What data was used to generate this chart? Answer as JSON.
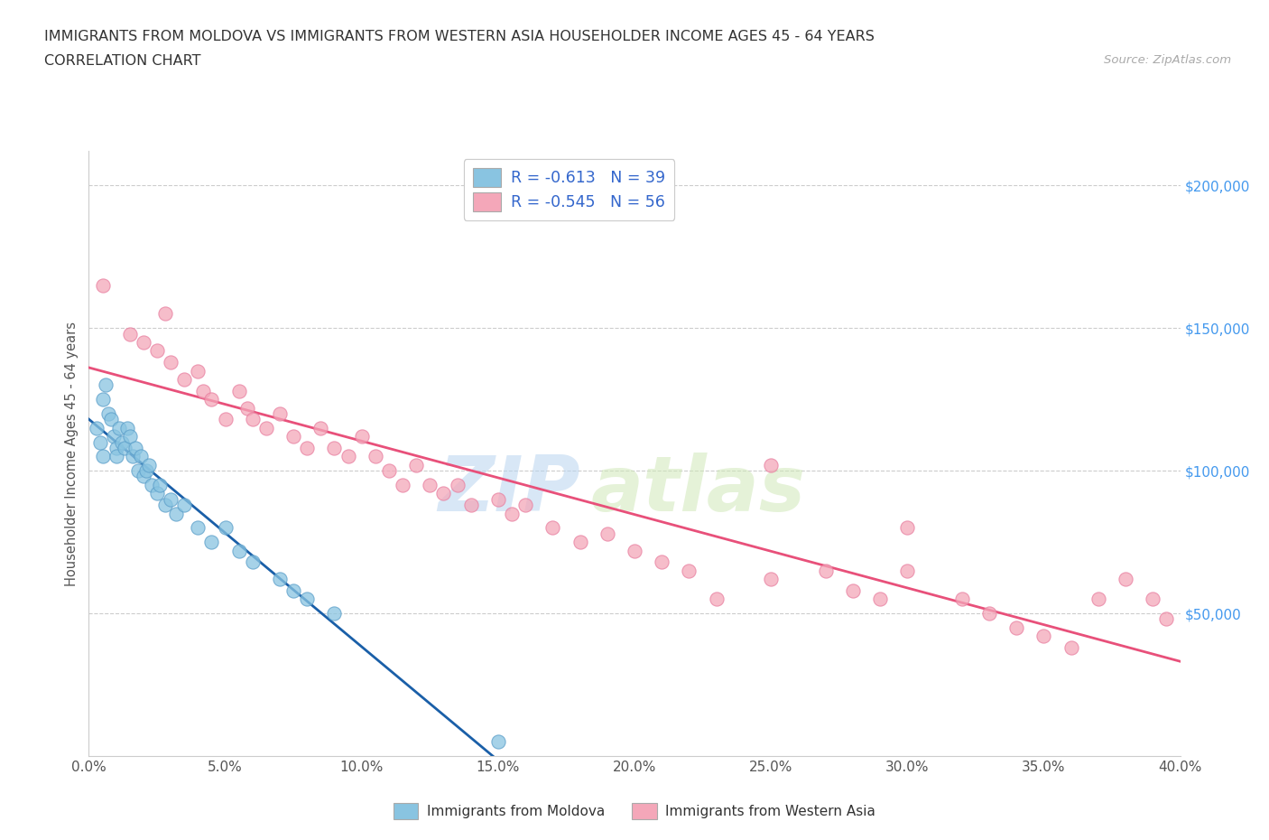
{
  "title_line1": "IMMIGRANTS FROM MOLDOVA VS IMMIGRANTS FROM WESTERN ASIA HOUSEHOLDER INCOME AGES 45 - 64 YEARS",
  "title_line2": "CORRELATION CHART",
  "source_text": "Source: ZipAtlas.com",
  "xlabel_ticks": [
    "0.0%",
    "5.0%",
    "10.0%",
    "15.0%",
    "20.0%",
    "25.0%",
    "30.0%",
    "35.0%",
    "40.0%"
  ],
  "xlabel_vals": [
    0.0,
    5.0,
    10.0,
    15.0,
    20.0,
    25.0,
    30.0,
    35.0,
    40.0
  ],
  "ylabel_ticks": [
    "$50,000",
    "$100,000",
    "$150,000",
    "$200,000"
  ],
  "ylabel_vals": [
    50000,
    100000,
    150000,
    200000
  ],
  "ylabel_label": "Householder Income Ages 45 - 64 years",
  "watermark_zip": "ZIP",
  "watermark_atlas": "atlas",
  "legend_r1": "R = -0.613   N = 39",
  "legend_r2": "R = -0.545   N = 56",
  "moldova_color": "#89c4e1",
  "moldova_edge_color": "#5b9ec9",
  "moldova_line_color": "#1a5fa8",
  "western_asia_color": "#f4a7b9",
  "western_asia_edge_color": "#e87fa0",
  "western_asia_line_color": "#e8507a",
  "moldova_scatter_x": [
    0.3,
    0.4,
    0.5,
    0.5,
    0.6,
    0.7,
    0.8,
    0.9,
    1.0,
    1.0,
    1.1,
    1.2,
    1.3,
    1.4,
    1.5,
    1.6,
    1.7,
    1.8,
    1.9,
    2.0,
    2.1,
    2.2,
    2.3,
    2.5,
    2.6,
    2.8,
    3.0,
    3.2,
    3.5,
    4.0,
    4.5,
    5.0,
    5.5,
    6.0,
    7.0,
    7.5,
    8.0,
    9.0,
    15.0
  ],
  "moldova_scatter_y": [
    115000,
    110000,
    125000,
    105000,
    130000,
    120000,
    118000,
    112000,
    108000,
    105000,
    115000,
    110000,
    108000,
    115000,
    112000,
    105000,
    108000,
    100000,
    105000,
    98000,
    100000,
    102000,
    95000,
    92000,
    95000,
    88000,
    90000,
    85000,
    88000,
    80000,
    75000,
    80000,
    72000,
    68000,
    62000,
    58000,
    55000,
    50000,
    5000
  ],
  "western_asia_scatter_x": [
    0.5,
    1.5,
    2.0,
    2.5,
    2.8,
    3.0,
    3.5,
    4.0,
    4.2,
    4.5,
    5.0,
    5.5,
    5.8,
    6.0,
    6.5,
    7.0,
    7.5,
    8.0,
    8.5,
    9.0,
    9.5,
    10.0,
    10.5,
    11.0,
    11.5,
    12.0,
    12.5,
    13.0,
    13.5,
    14.0,
    15.0,
    15.5,
    16.0,
    17.0,
    18.0,
    19.0,
    20.0,
    21.0,
    22.0,
    23.0,
    25.0,
    27.0,
    28.0,
    29.0,
    30.0,
    32.0,
    33.0,
    34.0,
    35.0,
    36.0,
    37.0,
    38.0,
    39.0,
    39.5,
    25.0,
    30.0
  ],
  "western_asia_scatter_y": [
    165000,
    148000,
    145000,
    142000,
    155000,
    138000,
    132000,
    135000,
    128000,
    125000,
    118000,
    128000,
    122000,
    118000,
    115000,
    120000,
    112000,
    108000,
    115000,
    108000,
    105000,
    112000,
    105000,
    100000,
    95000,
    102000,
    95000,
    92000,
    95000,
    88000,
    90000,
    85000,
    88000,
    80000,
    75000,
    78000,
    72000,
    68000,
    65000,
    55000,
    62000,
    65000,
    58000,
    55000,
    65000,
    55000,
    50000,
    45000,
    42000,
    38000,
    55000,
    62000,
    55000,
    48000,
    102000,
    80000
  ],
  "xlim": [
    0,
    40
  ],
  "ylim": [
    0,
    212000
  ],
  "plot_ylim_bottom": 0,
  "background_color": "#ffffff",
  "grid_color": "#cccccc"
}
